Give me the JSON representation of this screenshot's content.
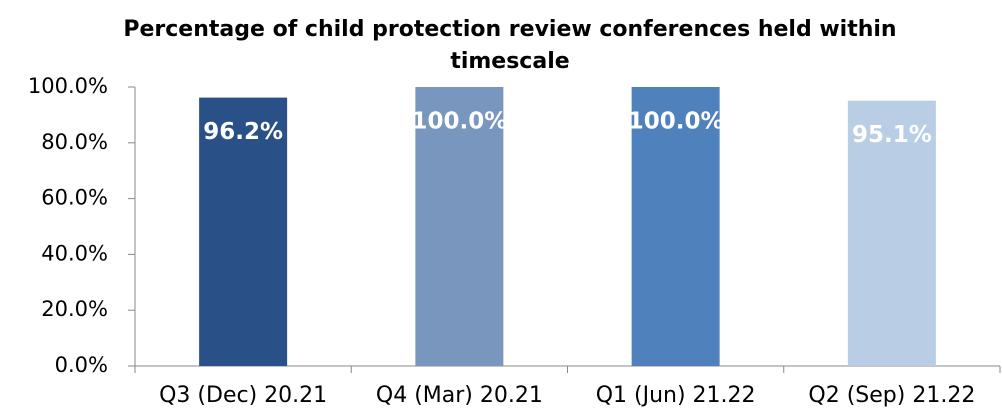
{
  "chart_data": {
    "type": "bar",
    "title": "Percentage of child protection review conferences held within timescale",
    "categories": [
      "Q3 (Dec) 20.21",
      "Q4 (Mar) 20.21",
      "Q1 (Jun) 21.22",
      "Q2 (Sep) 21.22"
    ],
    "values": [
      96.2,
      100.0,
      100.0,
      95.1
    ],
    "value_labels": [
      "96.2%",
      "100.0%",
      "100.0%",
      "95.1%"
    ],
    "colors": [
      "#2a5088",
      "#7996be",
      "#4f81bd",
      "#b9cde5"
    ],
    "ylim": [
      0,
      100
    ],
    "yticks": [
      {
        "value": 0,
        "label": "0.0%"
      },
      {
        "value": 20,
        "label": "20.0%"
      },
      {
        "value": 40,
        "label": "40.0%"
      },
      {
        "value": 60,
        "label": "60.0%"
      },
      {
        "value": 80,
        "label": "80.0%"
      },
      {
        "value": 100,
        "label": "100.0%"
      }
    ],
    "grid": false
  }
}
